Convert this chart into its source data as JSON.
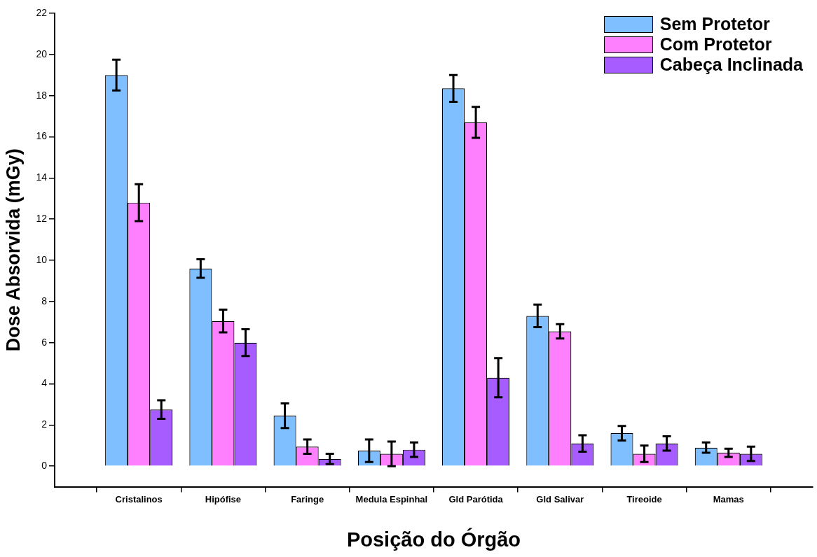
{
  "chart_data": {
    "type": "bar",
    "xlabel": "Posição do Órgão",
    "ylabel": "Dose Absorvida (mGy)",
    "categories": [
      "Cristalinos",
      "Hipófise",
      "Faringe",
      "Medula Espinhal",
      "Gld Parótida",
      "Gld Salivar",
      "Tireoide",
      "Mamas"
    ],
    "series": [
      {
        "name": "Sem Protetor",
        "color": "#80bfff",
        "values": [
          19.0,
          9.6,
          2.45,
          0.75,
          18.35,
          7.3,
          1.6,
          0.9
        ],
        "errors": [
          0.75,
          0.45,
          0.6,
          0.55,
          0.65,
          0.55,
          0.35,
          0.25
        ]
      },
      {
        "name": "Com Protetor",
        "color": "#ff80ff",
        "values": [
          12.8,
          7.05,
          0.95,
          0.6,
          16.7,
          6.55,
          0.6,
          0.65
        ],
        "errors": [
          0.9,
          0.55,
          0.35,
          0.6,
          0.75,
          0.35,
          0.4,
          0.2
        ]
      },
      {
        "name": "Cabeça Inclinada",
        "color": "#a65cff",
        "values": [
          2.75,
          6.0,
          0.35,
          0.8,
          4.3,
          1.1,
          1.1,
          0.6
        ],
        "errors": [
          0.45,
          0.65,
          0.25,
          0.35,
          0.95,
          0.4,
          0.35,
          0.35
        ]
      }
    ],
    "ylim": [
      -1,
      22
    ],
    "yticks": [
      0,
      2,
      4,
      6,
      8,
      10,
      12,
      14,
      16,
      18,
      20,
      22
    ],
    "grid": false,
    "legend": "top right"
  }
}
